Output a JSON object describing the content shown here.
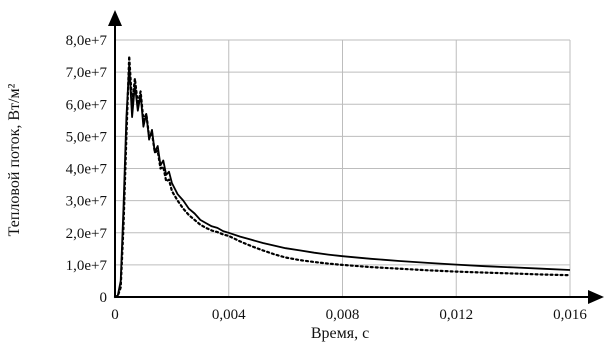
{
  "chart_data": {
    "type": "line",
    "title": "",
    "xlabel": "Время, с",
    "ylabel": "Тепловой поток, Вт/м²",
    "xlim": [
      0,
      0.016
    ],
    "ylim": [
      0,
      80000000
    ],
    "xticks": [
      0,
      0.004,
      0.008,
      0.012,
      0.016
    ],
    "xtick_labels": [
      "0",
      "0,004",
      "0,008",
      "0,012",
      "0,016"
    ],
    "yticks": [
      0,
      10000000,
      20000000,
      30000000,
      40000000,
      50000000,
      60000000,
      70000000,
      80000000
    ],
    "ytick_labels": [
      "0",
      "1,0e+7",
      "2,0e+7",
      "3,0e+7",
      "4,0e+7",
      "5,0e+7",
      "6,0e+7",
      "7,0e+7",
      "8,0e+7"
    ],
    "grid": true,
    "legend": "none",
    "series": [
      {
        "style": "solid",
        "color": "#000000",
        "x": [
          0,
          0.0001,
          0.0002,
          0.0003,
          0.0004,
          0.0005,
          0.0006,
          0.0007,
          0.0008,
          0.0009,
          0.001,
          0.0011,
          0.0012,
          0.0013,
          0.0014,
          0.0015,
          0.0016,
          0.0017,
          0.0018,
          0.0019,
          0.002,
          0.0022,
          0.0024,
          0.0026,
          0.0028,
          0.003,
          0.0032,
          0.0034,
          0.0036,
          0.0038,
          0.004,
          0.0044,
          0.0048,
          0.0052,
          0.0056,
          0.006,
          0.0065,
          0.007,
          0.0075,
          0.008,
          0.009,
          0.01,
          0.011,
          0.012,
          0.013,
          0.014,
          0.015,
          0.016
        ],
        "y": [
          0,
          500000,
          5000000,
          28000000,
          56000000,
          72000000,
          56000000,
          66000000,
          58000000,
          63000000,
          53000000,
          57000000,
          49000000,
          52000000,
          45000000,
          47000000,
          41000000,
          42500000,
          38000000,
          39000000,
          35500000,
          32000000,
          30000000,
          27500000,
          26000000,
          24000000,
          23000000,
          22000000,
          21500000,
          20500000,
          20000000,
          18800000,
          17800000,
          16800000,
          16000000,
          15200000,
          14500000,
          13800000,
          13200000,
          12700000,
          11900000,
          11200000,
          10600000,
          10100000,
          9600000,
          9200000,
          8800000,
          8400000
        ]
      },
      {
        "style": "dotted",
        "color": "#000000",
        "x": [
          0,
          0.0001,
          0.0002,
          0.0003,
          0.0004,
          0.0005,
          0.0006,
          0.0007,
          0.0008,
          0.0009,
          0.001,
          0.0011,
          0.0012,
          0.0013,
          0.0014,
          0.0015,
          0.0016,
          0.0017,
          0.0018,
          0.0019,
          0.002,
          0.0022,
          0.0024,
          0.0026,
          0.0028,
          0.003,
          0.0032,
          0.0034,
          0.0036,
          0.0038,
          0.004,
          0.0044,
          0.0048,
          0.0052,
          0.0056,
          0.006,
          0.0065,
          0.007,
          0.0075,
          0.008,
          0.009,
          0.01,
          0.011,
          0.012,
          0.013,
          0.014,
          0.015,
          0.016
        ],
        "y": [
          0,
          300000,
          3000000,
          22000000,
          50000000,
          75000000,
          60000000,
          68000000,
          60000000,
          64000000,
          55000000,
          57000000,
          50000000,
          51000000,
          45000000,
          45500000,
          40000000,
          40500000,
          36000000,
          36500000,
          33000000,
          30000000,
          27500000,
          25500000,
          24000000,
          22500000,
          21500000,
          20700000,
          20200000,
          19500000,
          19000000,
          17300000,
          15800000,
          14500000,
          13300000,
          12300000,
          11500000,
          10900000,
          10400000,
          10000000,
          9300000,
          8800000,
          8300000,
          7900000,
          7600000,
          7300000,
          7000000,
          6800000
        ]
      }
    ]
  }
}
